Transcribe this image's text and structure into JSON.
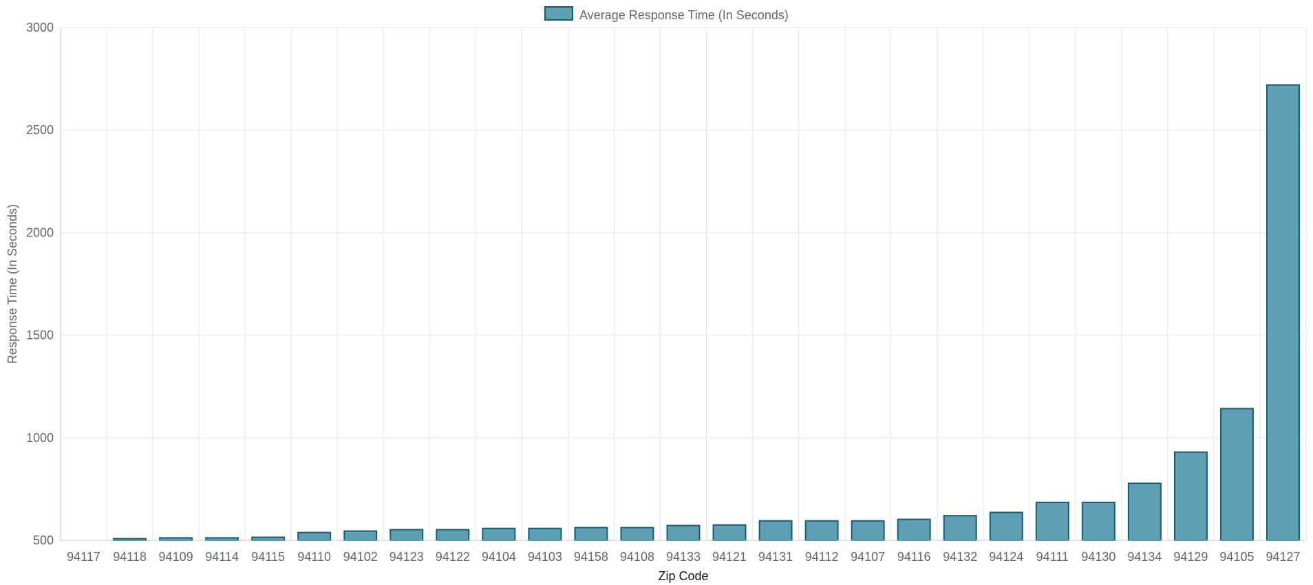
{
  "chart_data": {
    "type": "bar",
    "xlabel": "Zip Code",
    "ylabel": "Response Time (In Seconds)",
    "ylim": [
      500,
      3000
    ],
    "yticks": [
      500,
      1000,
      1500,
      2000,
      2500,
      3000
    ],
    "grid": true,
    "legend_position": "top-center",
    "categories": [
      "94117",
      "94118",
      "94109",
      "94114",
      "94115",
      "94110",
      "94102",
      "94123",
      "94122",
      "94104",
      "94103",
      "94158",
      "94108",
      "94133",
      "94121",
      "94131",
      "94112",
      "94107",
      "94116",
      "94132",
      "94124",
      "94111",
      "94130",
      "94134",
      "94129",
      "94105",
      "94127"
    ],
    "series": [
      {
        "name": "Average Response Time (In Seconds)",
        "values": [
          500,
          508,
          512,
          512,
          515,
          538,
          545,
          552,
          552,
          558,
          558,
          562,
          562,
          572,
          575,
          595,
          595,
          595,
          602,
          620,
          636,
          685,
          685,
          778,
          930,
          1142,
          2720
        ]
      }
    ],
    "colors": {
      "bar_fill": "#5f9fb4",
      "bar_stroke": "#0e5e7a",
      "grid": "#e6e6e6",
      "axis": "#c8c8c8",
      "tick_text": "#666666",
      "xlabel_text": "#111111",
      "ylabel_text": "#666666"
    }
  }
}
